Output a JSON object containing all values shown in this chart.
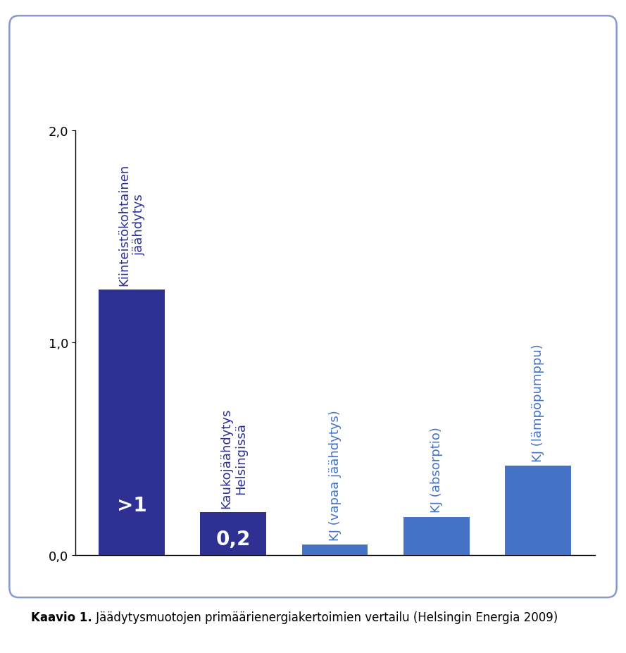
{
  "categories": [
    "Kiinteistökohtainen\njäähdytys",
    "Kaukojäähdytys\nHelsingissä",
    "KJ (vapaa jäähdytys)",
    "KJ (absorptio)",
    "KJ (lämpöpumppu)"
  ],
  "values": [
    1.25,
    0.2,
    0.05,
    0.18,
    0.42
  ],
  "bar_colors": [
    "#2e3191",
    "#2e3191",
    "#4472c4",
    "#4472c4",
    "#4472c4"
  ],
  "bar_labels": [
    ">1",
    "0,2",
    "",
    "",
    ""
  ],
  "bar_label_color": "white",
  "ylim": [
    0,
    2.0
  ],
  "yticks": [
    0.0,
    1.0,
    2.0
  ],
  "ytick_labels": [
    "0,0",
    "1,0",
    "2,0"
  ],
  "background_color": "#ffffff",
  "border_color": "#8899cc",
  "caption_bold": "Kaavio 1.",
  "caption_rest": " Jäädytysmuotojen primäärienergiakertoimien vertailu (Helsingin Energia 2009)",
  "label_color_dark": "#2e3191",
  "label_color_light": "#4472c4",
  "bar_width": 0.65,
  "label_fontsize": 13,
  "tick_fontsize": 13,
  "caption_fontsize": 12,
  "bar_label_fontsize": 20
}
